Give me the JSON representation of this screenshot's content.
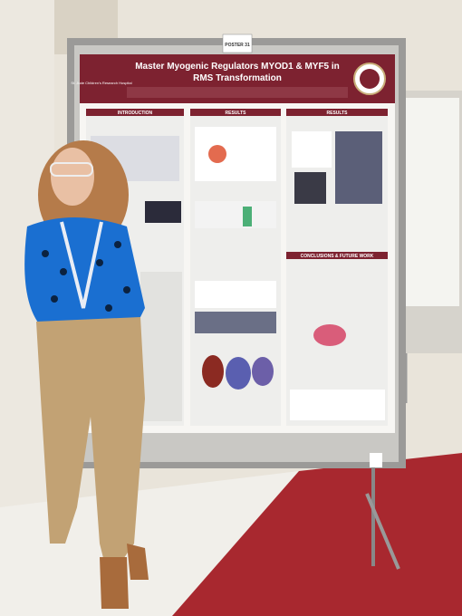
{
  "poster": {
    "number": "POSTER 31",
    "title_line1": "Master Myogenic Regulators MYOD1 & MYF5 in",
    "title_line2": "RMS Transformation",
    "institution": "St. Jude Children's Research Hospital",
    "sections": [
      "INTRODUCTION",
      "RESULTS",
      "RESULTS",
      "CONCLUSIONS & FUTURE WORK"
    ]
  }
}
